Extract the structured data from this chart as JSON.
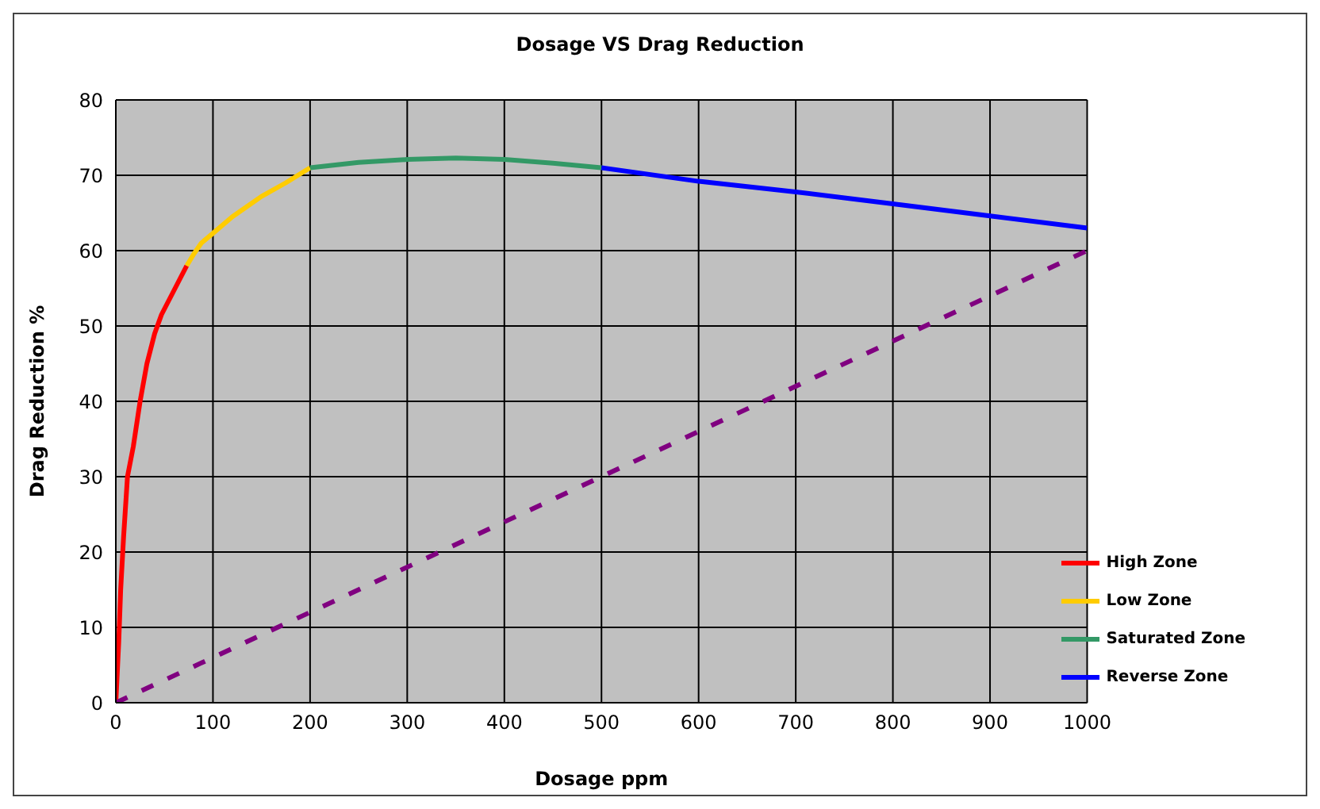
{
  "chart_data": {
    "type": "line",
    "title": "Dosage VS Drag Reduction",
    "xlabel": "Dosage  ppm",
    "ylabel": "Drag Reduction  %",
    "xlim": [
      0,
      1000
    ],
    "xticks": [
      0,
      100,
      200,
      300,
      400,
      500,
      600,
      700,
      800,
      900,
      1000
    ],
    "ylim": [
      0,
      80
    ],
    "yticks": [
      0,
      10,
      20,
      30,
      40,
      50,
      60,
      70,
      80
    ],
    "grid": true,
    "legend": "bottom right",
    "marker": "none",
    "line_style": "solid",
    "series": [
      {
        "name": "High Zone",
        "color": "#ff0000",
        "x": [
          0,
          3,
          5,
          8,
          12,
          18,
          25,
          32,
          40,
          47,
          55,
          65,
          73
        ],
        "values": [
          0,
          8,
          15,
          22,
          30,
          34,
          40,
          45,
          49,
          51.5,
          53.5,
          56,
          58
        ]
      },
      {
        "name": "Low Zone",
        "color": "#ffcc00",
        "x": [
          73,
          80,
          88,
          100,
          120,
          150,
          175,
          200
        ],
        "values": [
          58,
          59.5,
          61,
          62.3,
          64.5,
          67.2,
          69,
          71
        ]
      },
      {
        "name": "Saturated Zone",
        "color": "#339966",
        "x": [
          200,
          250,
          300,
          350,
          400,
          450,
          500
        ],
        "values": [
          71,
          71.7,
          72.1,
          72.3,
          72.1,
          71.6,
          71
        ]
      },
      {
        "name": "Reverse Zone",
        "color": "#0000ff",
        "x": [
          500,
          600,
          700,
          800,
          900,
          1000
        ],
        "values": [
          71,
          69.2,
          67.8,
          66.2,
          64.6,
          63
        ]
      },
      {
        "color": "#800080",
        "line_style": "dashed",
        "x": [
          0,
          1000
        ],
        "values": [
          0,
          60
        ]
      }
    ]
  }
}
